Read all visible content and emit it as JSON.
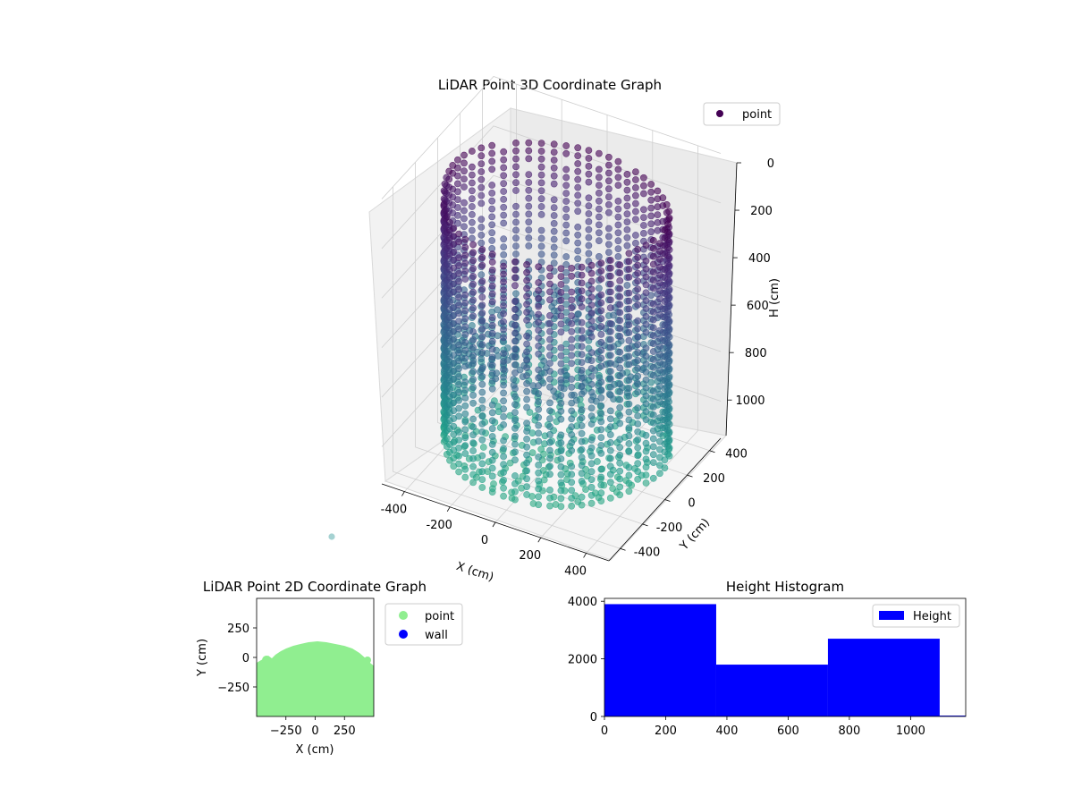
{
  "chart_data": [
    {
      "type": "scatter",
      "subtype": "3d",
      "title": "LiDAR Point 3D Coordinate Graph",
      "xlabel": "X (cm)",
      "ylabel": "Y (cm)",
      "zlabel": "H (cm)",
      "xticks": [
        -400,
        -200,
        0,
        200,
        400
      ],
      "yticks": [
        -400,
        -200,
        0,
        200,
        400
      ],
      "zticks": [
        0,
        200,
        400,
        600,
        800,
        1000
      ],
      "xlim": [
        -500,
        500
      ],
      "ylim": [
        -500,
        500
      ],
      "zlim": [
        0,
        1150
      ],
      "z_inverted": true,
      "colormap": "viridis",
      "legend": {
        "position": "top-right",
        "entries": [
          {
            "label": "point",
            "color": "#440154"
          }
        ]
      },
      "shape_description_points": {
        "radius": 450,
        "height_range": [
          100,
          1100
        ]
      },
      "grid": true
    },
    {
      "type": "scatter",
      "title": "LiDAR Point 2D Coordinate Graph",
      "xlabel": "X (cm)",
      "ylabel": "Y (cm)",
      "xticks": [
        -250,
        0,
        250
      ],
      "yticks": [
        -250,
        0,
        250
      ],
      "xlim": [
        -500,
        500
      ],
      "ylim": [
        -500,
        500
      ],
      "series": [
        {
          "name": "point",
          "color": "#90ee90"
        },
        {
          "name": "wall",
          "color": "#0000ff"
        }
      ],
      "legend": {
        "position": "outside-right"
      },
      "grid": false
    },
    {
      "type": "bar",
      "subtype": "histogram",
      "title": "Height Histogram",
      "xticks": [
        0,
        200,
        400,
        600,
        800,
        1000
      ],
      "yticks": [
        0,
        2000,
        4000
      ],
      "xlim": [
        0,
        1180
      ],
      "ylim": [
        0,
        4100
      ],
      "bins": [
        {
          "from": 0,
          "to": 365,
          "count": 3900
        },
        {
          "from": 365,
          "to": 730,
          "count": 1800
        },
        {
          "from": 730,
          "to": 1095,
          "count": 2700
        },
        {
          "from": 1095,
          "to": 1180,
          "count": 30
        }
      ],
      "series": [
        {
          "name": "Height",
          "color": "#0000ff"
        }
      ],
      "legend": {
        "position": "top-right"
      },
      "grid": false
    }
  ]
}
